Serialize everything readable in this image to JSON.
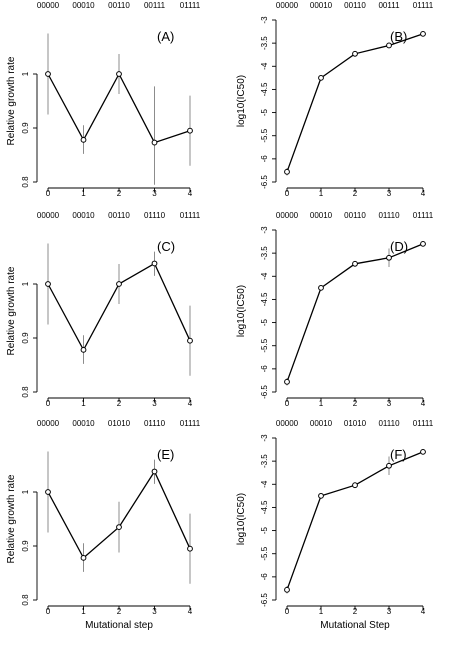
{
  "chart_data": [
    {
      "type": "line",
      "panel_label": "(A)",
      "x": [
        0,
        1,
        2,
        3,
        4
      ],
      "genotypes": [
        "00000",
        "00010",
        "00110",
        "00111",
        "01111"
      ],
      "y": [
        1.0,
        0.878,
        1.0,
        0.873,
        0.895
      ],
      "err_low": [
        0.925,
        0.852,
        0.963,
        0.795,
        0.83
      ],
      "err_high": [
        1.075,
        0.905,
        1.037,
        0.977,
        0.96
      ],
      "xlabel": "",
      "ylabel": "Relative growth rate",
      "ylim": [
        0.8,
        1.1
      ],
      "yticks": [
        0.8,
        0.9,
        1.0
      ],
      "ytick_labels": [
        "0.8",
        "0.9",
        "1"
      ],
      "xticks": [
        0,
        1,
        2,
        3,
        4
      ],
      "xtick_labels": [
        "0",
        "1",
        "2",
        "3",
        "4"
      ],
      "grid": false
    },
    {
      "type": "line",
      "panel_label": "(B)",
      "x": [
        0,
        1,
        2,
        3,
        4
      ],
      "genotypes": [
        "00000",
        "00010",
        "00110",
        "00111",
        "01111"
      ],
      "y": [
        -6.28,
        -4.25,
        -3.73,
        -3.55,
        -3.3
      ],
      "err_low": [
        -6.36,
        -4.27,
        -3.76,
        -3.59,
        -3.34
      ],
      "err_high": [
        -6.2,
        -4.23,
        -3.7,
        -3.51,
        -3.26
      ],
      "xlabel": "",
      "ylabel": "log10(IC50)",
      "ylim": [
        -6.5,
        -3.0
      ],
      "yticks": [
        -6.5,
        -6,
        -5.5,
        -5,
        -4.5,
        -4,
        -3.5,
        -3
      ],
      "ytick_labels": [
        "-6.5",
        "-6",
        "-5.5",
        "-5",
        "-4.5",
        "-4",
        "-3.5",
        "-3"
      ],
      "xticks": [
        0,
        1,
        2,
        3,
        4
      ],
      "xtick_labels": [
        "0",
        "1",
        "2",
        "3",
        "4"
      ],
      "grid": false
    },
    {
      "type": "line",
      "panel_label": "(C)",
      "x": [
        0,
        1,
        2,
        3,
        4
      ],
      "genotypes": [
        "00000",
        "00010",
        "00110",
        "01110",
        "01111"
      ],
      "y": [
        1.0,
        0.878,
        1.0,
        1.038,
        0.895
      ],
      "err_low": [
        0.925,
        0.852,
        0.963,
        1.015,
        0.83
      ],
      "err_high": [
        1.075,
        0.905,
        1.037,
        1.06,
        0.96
      ],
      "xlabel": "",
      "ylabel": "Relative growth rate",
      "ylim": [
        0.8,
        1.1
      ],
      "yticks": [
        0.8,
        0.9,
        1.0
      ],
      "ytick_labels": [
        "0.8",
        "0.9",
        "1"
      ],
      "xticks": [
        0,
        1,
        2,
        3,
        4
      ],
      "xtick_labels": [
        "0",
        "1",
        "2",
        "3",
        "4"
      ],
      "grid": false
    },
    {
      "type": "line",
      "panel_label": "(D)",
      "x": [
        0,
        1,
        2,
        3,
        4
      ],
      "genotypes": [
        "00000",
        "00010",
        "00110",
        "01110",
        "01111"
      ],
      "y": [
        -6.28,
        -4.25,
        -3.73,
        -3.6,
        -3.3
      ],
      "err_low": [
        -6.36,
        -4.27,
        -3.76,
        -3.8,
        -3.34
      ],
      "err_high": [
        -6.2,
        -4.23,
        -3.7,
        -3.4,
        -3.26
      ],
      "xlabel": "",
      "ylabel": "log10(IC50)",
      "ylim": [
        -6.5,
        -3.0
      ],
      "yticks": [
        -6.5,
        -6,
        -5.5,
        -5,
        -4.5,
        -4,
        -3.5,
        -3
      ],
      "ytick_labels": [
        "-6.5",
        "-6",
        "-5.5",
        "-5",
        "-4.5",
        "-4",
        "-3.5",
        "-3"
      ],
      "xticks": [
        0,
        1,
        2,
        3,
        4
      ],
      "xtick_labels": [
        "0",
        "1",
        "2",
        "3",
        "4"
      ],
      "grid": false
    },
    {
      "type": "line",
      "panel_label": "(E)",
      "x": [
        0,
        1,
        2,
        3,
        4
      ],
      "genotypes": [
        "00000",
        "00010",
        "01010",
        "01110",
        "01111"
      ],
      "y": [
        1.0,
        0.878,
        0.935,
        1.038,
        0.895
      ],
      "err_low": [
        0.925,
        0.852,
        0.888,
        1.015,
        0.83
      ],
      "err_high": [
        1.075,
        0.905,
        0.982,
        1.06,
        0.96
      ],
      "xlabel": "Mutational step",
      "ylabel": "Relative growth rate",
      "ylim": [
        0.8,
        1.1
      ],
      "yticks": [
        0.8,
        0.9,
        1.0
      ],
      "ytick_labels": [
        "0.8",
        "0.9",
        "1"
      ],
      "xticks": [
        0,
        1,
        2,
        3,
        4
      ],
      "xtick_labels": [
        "0",
        "1",
        "2",
        "3",
        "4"
      ],
      "grid": false
    },
    {
      "type": "line",
      "panel_label": "(F)",
      "x": [
        0,
        1,
        2,
        3,
        4
      ],
      "genotypes": [
        "00000",
        "00010",
        "01010",
        "01110",
        "01111"
      ],
      "y": [
        -6.28,
        -4.25,
        -4.02,
        -3.6,
        -3.3
      ],
      "err_low": [
        -6.36,
        -4.27,
        -4.05,
        -3.8,
        -3.34
      ],
      "err_high": [
        -6.2,
        -4.23,
        -3.99,
        -3.4,
        -3.26
      ],
      "xlabel": "Mutational Step",
      "ylabel": "log10(IC50)",
      "ylim": [
        -6.5,
        -3.0
      ],
      "yticks": [
        -6.5,
        -6,
        -5.5,
        -5,
        -4.5,
        -4,
        -3.5,
        -3
      ],
      "ytick_labels": [
        "-6.5",
        "-6",
        "-5.5",
        "-5",
        "-4.5",
        "-4",
        "-3.5",
        "-3"
      ],
      "xticks": [
        0,
        1,
        2,
        3,
        4
      ],
      "xtick_labels": [
        "0",
        "1",
        "2",
        "3",
        "4"
      ],
      "grid": false
    }
  ]
}
